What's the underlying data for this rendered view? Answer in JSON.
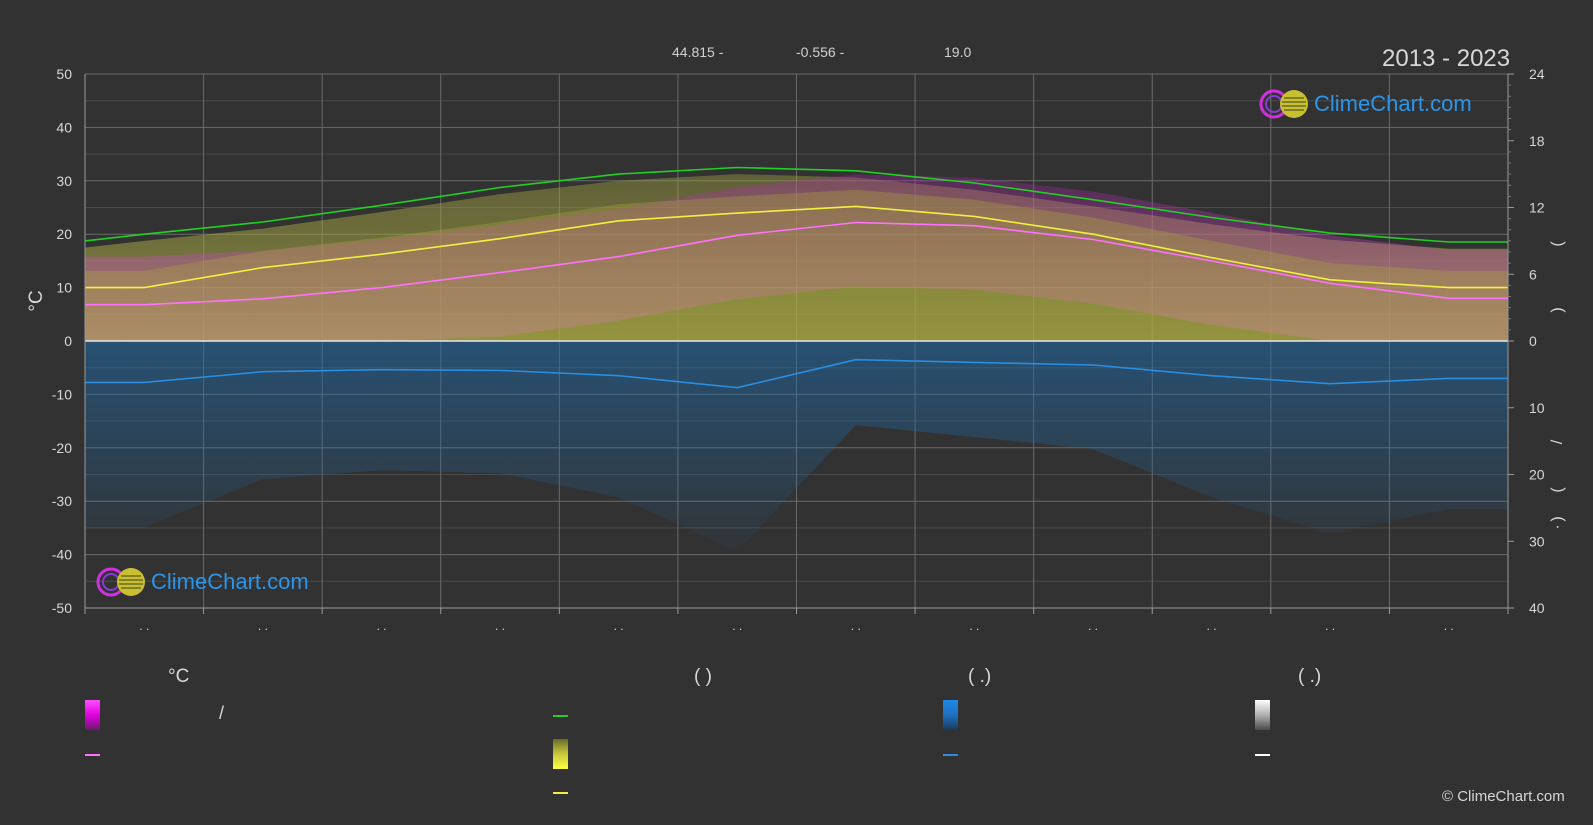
{
  "header": {
    "latitude": "44.815 -",
    "longitude": "-0.556 -",
    "elevation": "19.0",
    "years": "2013 - 2023"
  },
  "logo_text": "ClimeChart.com",
  "copyright": "© ClimeChart.com",
  "chart_data": {
    "type": "line",
    "y_left": {
      "label": "°C",
      "range": [
        -50,
        50
      ],
      "ticks": [
        "50",
        "40",
        "30",
        "20",
        "10",
        "0",
        "-10",
        "-20",
        "-30",
        "-40",
        "-50"
      ]
    },
    "y_right_top": {
      "range": [
        0,
        24
      ],
      "ticks": [
        "24",
        "18",
        "12",
        "6",
        "0"
      ]
    },
    "y_right_bottom": {
      "range": [
        0,
        40
      ],
      "ticks": [
        "0",
        "10",
        "20",
        "30",
        "40"
      ]
    },
    "right_axis_glyphs": [
      "(",
      ")",
      "/",
      "(",
      "·",
      ")"
    ],
    "x_tick_marks": [
      ". .",
      ". .",
      ". .",
      ". .",
      ". .",
      ". .",
      ". .",
      ". .",
      ". .",
      ". .",
      ". .",
      ". ."
    ],
    "grid": true,
    "series": [
      {
        "key": "daylight",
        "color": "#22d022",
        "axis": "hours",
        "values": [
          9.0,
          9.6,
          10.7,
          12.2,
          13.8,
          15.0,
          15.6,
          15.3,
          14.2,
          12.7,
          11.1,
          9.7,
          8.9,
          8.9
        ]
      },
      {
        "key": "sunshine",
        "color": "#f0f040",
        "axis": "hours",
        "values": [
          4.8,
          4.8,
          6.6,
          7.8,
          9.2,
          10.8,
          11.5,
          12.1,
          11.2,
          9.6,
          7.5,
          5.5,
          4.8,
          4.8
        ]
      },
      {
        "key": "temp_mean",
        "color": "#ff70ff",
        "axis": "celsius",
        "values": [
          6.8,
          6.8,
          7.9,
          10.0,
          12.8,
          15.8,
          19.8,
          22.2,
          21.6,
          19.0,
          15.0,
          10.8,
          8.0,
          8.0
        ]
      },
      {
        "key": "rain",
        "color": "#2a8de0",
        "axis": "mm",
        "values": [
          6.2,
          6.2,
          4.6,
          4.3,
          4.4,
          5.2,
          7.0,
          2.8,
          3.2,
          3.6,
          5.2,
          6.4,
          5.6,
          5.6
        ]
      }
    ]
  },
  "legend": {
    "headers": [
      "°C",
      "(          )",
      "(   .)",
      "(   .)"
    ],
    "slash": "/",
    "colors": {
      "temp_range": "#e000e0",
      "temp_mean": "#ff70ff",
      "daylight": "#22d022",
      "sunshine_range": "#e6e63a",
      "sunshine": "#f0f040",
      "rain_range": "#1e88e5",
      "rain": "#2a8de0",
      "snow_range": "#e0e0e0",
      "snow": "#ffffff"
    }
  }
}
